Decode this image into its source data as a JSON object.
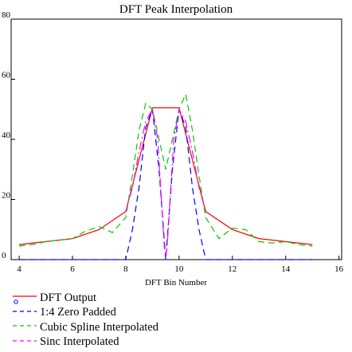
{
  "chart_data": {
    "type": "line",
    "title": "DFT Peak Interpolation",
    "xlabel": "DFT Bin Number",
    "ylabel": "",
    "xlim": [
      3.7,
      16.1
    ],
    "ylim": [
      0,
      80
    ],
    "xticks": [
      4,
      6,
      8,
      10,
      12,
      14,
      16
    ],
    "yticks": [
      0,
      20,
      40,
      60,
      80
    ],
    "legend_position": "bottom-left",
    "series": [
      {
        "name": "DFT Output",
        "color": "#ff0000",
        "dash": "solid",
        "x": [
          4,
          5,
          6,
          7,
          8,
          9,
          10,
          11,
          12,
          13,
          14,
          15
        ],
        "y": [
          5,
          6,
          7,
          10,
          16,
          50.5,
          50.5,
          16,
          10,
          7,
          6,
          5
        ]
      },
      {
        "name": "1:4 Zero Padded",
        "color": "#0000ff",
        "dash": "dashed",
        "x": [
          4,
          5,
          6,
          7,
          7.5,
          8,
          8.25,
          8.5,
          8.75,
          9,
          9.25,
          9.5,
          9.75,
          10,
          10.25,
          10.5,
          10.75,
          11,
          11.5,
          12,
          13,
          14,
          15
        ],
        "y": [
          0,
          0,
          0,
          0,
          0,
          0,
          10,
          24,
          44,
          50,
          30,
          0,
          30,
          50,
          44,
          24,
          10,
          0,
          0,
          0,
          0,
          0,
          0
        ]
      },
      {
        "name": "Cubic Spline Interpolated",
        "color": "#00cc00",
        "dash": "dashed",
        "x": [
          4,
          4.5,
          5,
          5.5,
          6,
          6.5,
          7,
          7.5,
          8,
          8.25,
          8.5,
          8.75,
          9,
          9.5,
          10,
          10.25,
          10.5,
          10.75,
          11,
          11.5,
          12,
          12.5,
          13,
          13.5,
          14,
          14.5,
          15
        ],
        "y": [
          4.5,
          5,
          6,
          6.5,
          7,
          9.5,
          11,
          9,
          14,
          28,
          43,
          52,
          50,
          30,
          50,
          55,
          43,
          28,
          14,
          7,
          10.5,
          10,
          6,
          5.5,
          6,
          5,
          4.5
        ]
      },
      {
        "name": "Sinc Interpolated",
        "color": "#ff00ff",
        "dash": "dashdot",
        "x": [
          8,
          8.25,
          8.5,
          8.75,
          9,
          9.2,
          9.35,
          9.45,
          9.5,
          9.55,
          9.65,
          9.8,
          10,
          10.25,
          10.5,
          10.75,
          11
        ],
        "y": [
          16,
          24,
          36,
          46,
          50,
          40,
          18,
          4,
          1,
          4,
          18,
          40,
          50,
          46,
          36,
          24,
          16
        ]
      }
    ]
  }
}
